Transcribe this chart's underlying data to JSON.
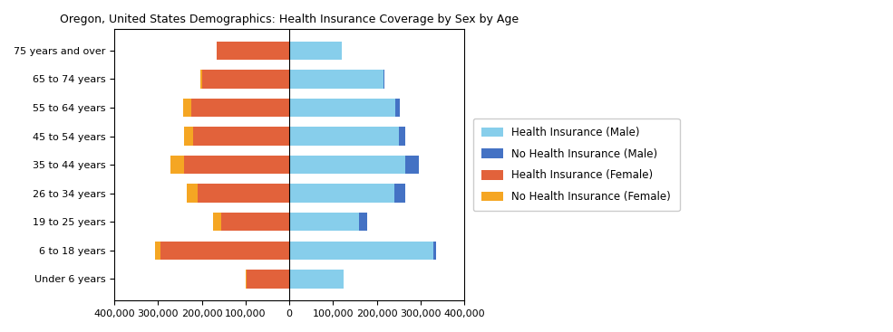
{
  "title": "Oregon, United States Demographics: Health Insurance Coverage by Sex by Age",
  "age_groups": [
    "Under 6 years",
    "6 to 18 years",
    "19 to 25 years",
    "26 to 34 years",
    "35 to 44 years",
    "45 to 54 years",
    "55 to 64 years",
    "65 to 74 years",
    "75 years and over"
  ],
  "male_insured": [
    125000,
    330000,
    160000,
    240000,
    265000,
    250000,
    242000,
    215000,
    120000
  ],
  "male_uninsured": [
    0,
    5000,
    18000,
    25000,
    32000,
    16000,
    10000,
    2000,
    1000
  ],
  "female_insured": [
    97000,
    295000,
    155000,
    210000,
    240000,
    220000,
    225000,
    200000,
    165000
  ],
  "female_uninsured": [
    2000,
    12000,
    20000,
    25000,
    32000,
    20000,
    18000,
    4000,
    2000
  ],
  "color_male_insured": "#87CEEB",
  "color_male_uninsured": "#4472C4",
  "color_female_insured": "#E2623B",
  "color_female_uninsured": "#F5A623",
  "xlim": 400000,
  "xtick_step": 100000,
  "legend_labels": [
    "Health Insurance (Male)",
    "No Health Insurance (Male)",
    "Health Insurance (Female)",
    "No Health Insurance (Female)"
  ],
  "bar_height": 0.65
}
